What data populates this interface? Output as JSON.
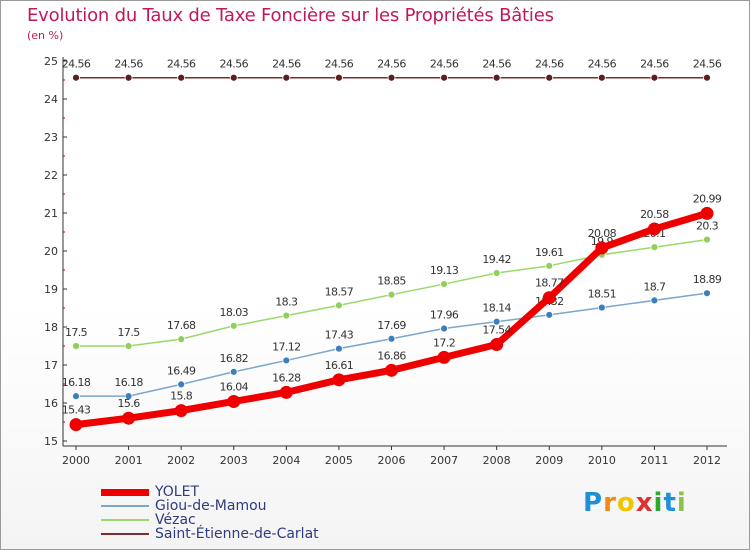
{
  "chart_data": {
    "type": "line",
    "title": "Evolution du Taux de Taxe Foncière sur les Propriétés Bâties",
    "subtitle": "(en %)",
    "categories": [
      "2000",
      "2001",
      "2002",
      "2003",
      "2004",
      "2005",
      "2006",
      "2007",
      "2008",
      "2009",
      "2010",
      "2011",
      "2012"
    ],
    "ylim": [
      15,
      25
    ],
    "yticks": [
      "15",
      "16",
      "17",
      "18",
      "19",
      "20",
      "21",
      "22",
      "23",
      "24",
      "25"
    ],
    "grid": false,
    "legend_position": "bottom-left",
    "series": [
      {
        "name": "Saint-Étienne-de-Carlat",
        "color": "#7b2e2e",
        "values": [
          24.56,
          24.56,
          24.56,
          24.56,
          24.56,
          24.56,
          24.56,
          24.56,
          24.56,
          24.56,
          24.56,
          24.56,
          24.56
        ],
        "labels": [
          "24.56",
          "24.56",
          "24.56",
          "24.56",
          "24.56",
          "24.56",
          "24.56",
          "24.56",
          "24.56",
          "24.56",
          "24.56",
          "24.56",
          "24.56"
        ]
      },
      {
        "name": "Vézac",
        "color": "#9ad86a",
        "values": [
          17.5,
          17.5,
          17.68,
          18.03,
          18.3,
          18.57,
          18.85,
          19.13,
          19.42,
          19.61,
          19.9,
          20.1,
          20.3
        ],
        "labels": [
          "17.5",
          "17.5",
          "17.68",
          "18.03",
          "18.3",
          "18.57",
          "18.85",
          "19.13",
          "19.42",
          "19.61",
          "19.9",
          "20.1",
          "20.3"
        ]
      },
      {
        "name": "Giou-de-Mamou",
        "color": "#7aa6cf",
        "values": [
          16.18,
          16.18,
          16.49,
          16.82,
          17.12,
          17.43,
          17.69,
          17.96,
          18.14,
          18.32,
          18.51,
          18.7,
          18.89
        ],
        "labels": [
          "16.18",
          "16.18",
          "16.49",
          "16.82",
          "17.12",
          "17.43",
          "17.69",
          "17.96",
          "18.14",
          "18.32",
          "18.51",
          "18.7",
          "18.89"
        ]
      },
      {
        "name": "YOLET",
        "color": "#ee0000",
        "values": [
          15.43,
          15.6,
          15.8,
          16.04,
          16.28,
          16.61,
          16.86,
          17.2,
          17.54,
          18.77,
          20.08,
          20.58,
          20.99
        ],
        "labels": [
          "15.43",
          "15.6",
          "15.8",
          "16.04",
          "16.28",
          "16.61",
          "16.86",
          "17.2",
          "17.54",
          "18.77",
          "20.08",
          "20.58",
          "20.99"
        ]
      }
    ],
    "legend": [
      "YOLET",
      "Giou-de-Mamou",
      "Vézac",
      "Saint-Étienne-de-Carlat"
    ]
  },
  "brand": {
    "letters": [
      "P",
      "r",
      "o",
      "x",
      "i",
      "t",
      "i"
    ],
    "colors": [
      "#1e90d6",
      "#f08a12",
      "#f2c400",
      "#e03030",
      "#2aa830",
      "#1e90d6",
      "#8bc34a"
    ]
  }
}
